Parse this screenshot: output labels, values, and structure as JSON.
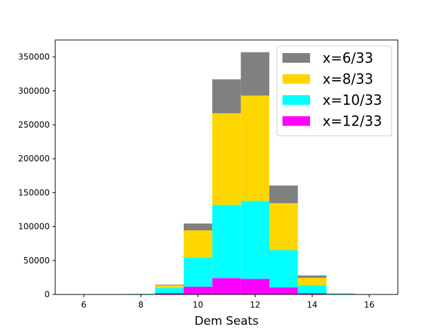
{
  "chart_data": {
    "type": "bar",
    "stacked": true,
    "title": "",
    "xlabel": "Dem Seats",
    "ylabel": "",
    "xlim": [
      5,
      17
    ],
    "ylim": [
      0,
      375000
    ],
    "xticks": [
      6,
      8,
      10,
      12,
      14,
      16
    ],
    "yticks": [
      0,
      50000,
      100000,
      150000,
      200000,
      250000,
      300000,
      350000
    ],
    "bin_width": 1,
    "categories": [
      6,
      7,
      8,
      9,
      10,
      11,
      12,
      13,
      14,
      15,
      16
    ],
    "series": [
      {
        "name": "x=12/33",
        "color": "#ff00ff",
        "values": [
          0,
          0,
          100,
          2000,
          11500,
          24000,
          23000,
          10500,
          2000,
          200,
          0
        ]
      },
      {
        "name": "x=10/33",
        "color": "#00ffff",
        "values": [
          0,
          0,
          800,
          7500,
          43000,
          108000,
          115000,
          55000,
          11500,
          800,
          0
        ]
      },
      {
        "name": "x=8/33",
        "color": "#ffd700",
        "values": [
          0,
          0,
          100,
          4000,
          40000,
          135000,
          155000,
          69000,
          11000,
          500,
          0
        ]
      },
      {
        "name": "x=6/33",
        "color": "#808080",
        "values": [
          0,
          0,
          0,
          1000,
          10000,
          50000,
          64000,
          26000,
          3500,
          100,
          0
        ]
      }
    ],
    "legend": {
      "placement": "top-right",
      "order": [
        "x=6/33",
        "x=8/33",
        "x=10/33",
        "x=12/33"
      ]
    },
    "grid": false
  }
}
